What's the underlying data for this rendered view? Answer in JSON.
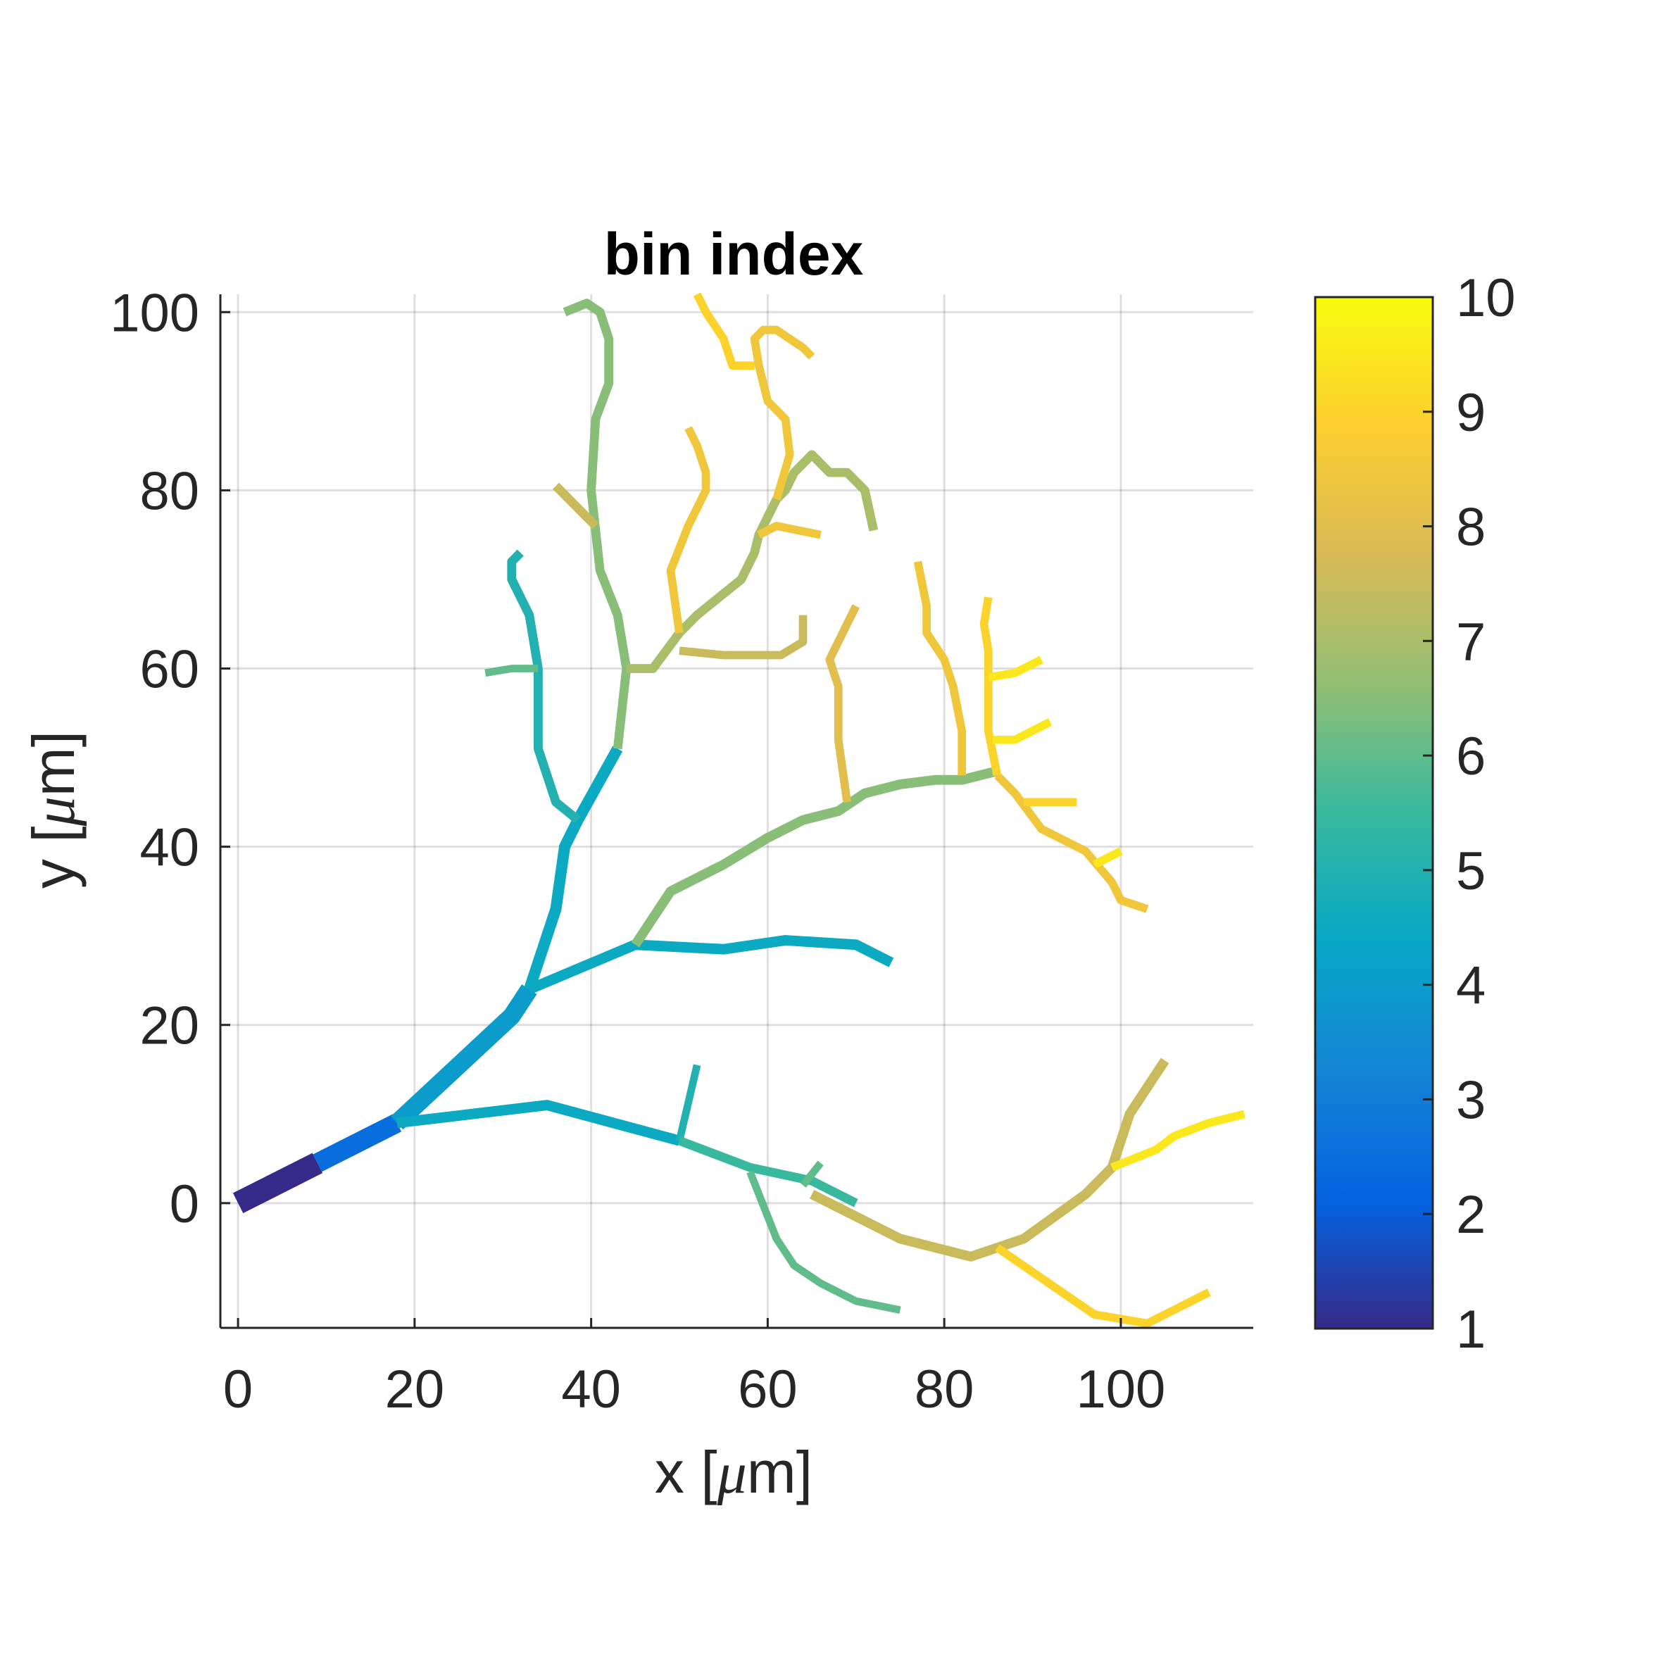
{
  "chart_data": {
    "type": "line",
    "title": "bin index",
    "xlabel": {
      "prefix": "x [",
      "mu": "μ",
      "suffix": "m]"
    },
    "ylabel": {
      "prefix": "y [",
      "mu": "μ",
      "suffix": "m]"
    },
    "xlim": [
      -2,
      115
    ],
    "ylim": [
      -14,
      102
    ],
    "xticks": [
      0,
      20,
      40,
      60,
      80,
      100
    ],
    "yticks": [
      0,
      20,
      40,
      60,
      80,
      100
    ],
    "grid": true,
    "colorbar": {
      "range": [
        1,
        10
      ],
      "ticks": [
        1,
        2,
        3,
        4,
        5,
        6,
        7,
        8,
        9,
        10
      ],
      "colormap": [
        "#352a87",
        "#0363e1",
        "#1485d4",
        "#06a7c6",
        "#38b99e",
        "#92bf73",
        "#d9ba56",
        "#fcce2e",
        "#f9fb0e"
      ]
    },
    "segments": [
      {
        "bin": 1,
        "width": 3.0,
        "points": [
          [
            0,
            0
          ],
          [
            9,
            4.5
          ]
        ]
      },
      {
        "bin": 2.5,
        "width": 2.6,
        "points": [
          [
            9,
            4.5
          ],
          [
            18,
            9
          ]
        ]
      },
      {
        "bin": 4,
        "width": 2.4,
        "points": [
          [
            18,
            9
          ],
          [
            31,
            21
          ],
          [
            33,
            24
          ]
        ]
      },
      {
        "bin": 4.5,
        "width": 1.5,
        "points": [
          [
            33,
            24
          ],
          [
            36,
            33
          ],
          [
            37,
            40
          ],
          [
            38.5,
            43
          ],
          [
            43,
            51
          ]
        ]
      },
      {
        "bin": 5,
        "width": 1.2,
        "points": [
          [
            38.5,
            43
          ],
          [
            36,
            45
          ],
          [
            34,
            51
          ],
          [
            34,
            60
          ],
          [
            33,
            66
          ],
          [
            31,
            70
          ],
          [
            31,
            72
          ],
          [
            32,
            73
          ]
        ]
      },
      {
        "bin": 6,
        "width": 1.0,
        "points": [
          [
            34,
            60
          ],
          [
            31,
            60
          ],
          [
            28,
            59.5
          ]
        ]
      },
      {
        "bin": 6.5,
        "width": 1.2,
        "points": [
          [
            43,
            51
          ],
          [
            44,
            60
          ],
          [
            43,
            66
          ],
          [
            41,
            71
          ],
          [
            40,
            80
          ],
          [
            40.5,
            88
          ],
          [
            42,
            92
          ],
          [
            42,
            97
          ],
          [
            41,
            100
          ],
          [
            39.5,
            101
          ],
          [
            37,
            100
          ]
        ]
      },
      {
        "bin": 7.5,
        "width": 1.2,
        "points": [
          [
            40.5,
            76
          ],
          [
            36,
            80.5
          ]
        ]
      },
      {
        "bin": 7,
        "width": 1.2,
        "points": [
          [
            44,
            60
          ],
          [
            47,
            60
          ],
          [
            50,
            64
          ],
          [
            52,
            66
          ],
          [
            57,
            70
          ],
          [
            58.5,
            73
          ],
          [
            59,
            75
          ],
          [
            61,
            79
          ],
          [
            62,
            80
          ],
          [
            63,
            82
          ],
          [
            65,
            84
          ],
          [
            67,
            82
          ],
          [
            69,
            82
          ],
          [
            71,
            80
          ],
          [
            72,
            75.5
          ]
        ]
      },
      {
        "bin": 8.5,
        "width": 1.1,
        "points": [
          [
            50,
            64
          ],
          [
            49,
            71
          ],
          [
            51,
            76
          ],
          [
            53,
            80
          ],
          [
            53,
            82
          ],
          [
            52,
            85
          ],
          [
            51,
            87
          ]
        ]
      },
      {
        "bin": 8.5,
        "width": 1.1,
        "points": [
          [
            59,
            75
          ],
          [
            61,
            76
          ],
          [
            66,
            75
          ]
        ]
      },
      {
        "bin": 8.5,
        "width": 1.1,
        "points": [
          [
            61,
            79
          ],
          [
            62.5,
            84
          ],
          [
            62,
            88
          ],
          [
            60,
            90
          ],
          [
            59,
            94
          ],
          [
            58.5,
            97
          ],
          [
            59.5,
            98
          ],
          [
            61,
            98
          ],
          [
            64,
            96
          ],
          [
            65,
            95
          ]
        ]
      },
      {
        "bin": 9,
        "width": 1.1,
        "points": [
          [
            58.5,
            94
          ],
          [
            56,
            94
          ],
          [
            55,
            97
          ],
          [
            53,
            100
          ],
          [
            52,
            102
          ]
        ]
      },
      {
        "bin": 7.5,
        "width": 1.1,
        "points": [
          [
            50,
            62
          ],
          [
            55,
            61.5
          ],
          [
            59,
            61.5
          ],
          [
            61.5,
            61.5
          ],
          [
            64,
            63
          ],
          [
            64,
            66
          ]
        ]
      },
      {
        "bin": 4.5,
        "width": 1.4,
        "points": [
          [
            33,
            24
          ],
          [
            45,
            29
          ],
          [
            55,
            28.5
          ],
          [
            62,
            29.5
          ],
          [
            70,
            29
          ],
          [
            74,
            27
          ]
        ]
      },
      {
        "bin": 6.5,
        "width": 1.3,
        "points": [
          [
            45,
            29
          ],
          [
            49,
            35
          ],
          [
            55,
            38
          ],
          [
            60,
            41
          ],
          [
            64,
            43
          ],
          [
            68,
            44
          ],
          [
            71,
            46
          ],
          [
            75,
            47
          ],
          [
            79,
            47.5
          ],
          [
            82,
            47.5
          ],
          [
            86,
            48.5
          ]
        ]
      },
      {
        "bin": 8,
        "width": 1.1,
        "points": [
          [
            69,
            45
          ],
          [
            68,
            52
          ],
          [
            68,
            55
          ],
          [
            68,
            58
          ],
          [
            67,
            61
          ],
          [
            69,
            65
          ],
          [
            70,
            67
          ]
        ]
      },
      {
        "bin": 8.5,
        "width": 1.1,
        "points": [
          [
            82,
            48
          ],
          [
            82,
            53
          ],
          [
            81,
            58
          ],
          [
            80,
            61
          ],
          [
            78,
            64
          ],
          [
            78,
            67
          ],
          [
            77,
            72
          ]
        ]
      },
      {
        "bin": 8.5,
        "width": 1.1,
        "points": [
          [
            86,
            48
          ],
          [
            88,
            46
          ],
          [
            91,
            42
          ],
          [
            96,
            39.5
          ],
          [
            99,
            36
          ],
          [
            100,
            34
          ],
          [
            103,
            33
          ]
        ]
      },
      {
        "bin": 9,
        "width": 1.1,
        "points": [
          [
            86,
            48
          ],
          [
            85,
            53
          ],
          [
            85,
            57
          ],
          [
            85,
            59
          ],
          [
            85,
            62
          ],
          [
            84.5,
            65
          ],
          [
            85,
            68
          ]
        ]
      },
      {
        "bin": 9.5,
        "width": 1.1,
        "points": [
          [
            85,
            59
          ],
          [
            88,
            59.5
          ],
          [
            91,
            61
          ]
        ]
      },
      {
        "bin": 9.5,
        "width": 1.1,
        "points": [
          [
            85.5,
            52
          ],
          [
            88,
            52
          ],
          [
            90,
            53
          ],
          [
            92,
            54
          ]
        ]
      },
      {
        "bin": 9,
        "width": 1.1,
        "points": [
          [
            89,
            45
          ],
          [
            95,
            45
          ]
        ]
      },
      {
        "bin": 9.5,
        "width": 1.1,
        "points": [
          [
            97,
            38
          ],
          [
            100,
            39.5
          ]
        ]
      },
      {
        "bin": 4.5,
        "width": 1.4,
        "points": [
          [
            18,
            9
          ],
          [
            35,
            11
          ],
          [
            50,
            7
          ]
        ]
      },
      {
        "bin": 5,
        "width": 1.0,
        "points": [
          [
            50,
            7
          ],
          [
            52,
            15.5
          ]
        ]
      },
      {
        "bin": 5.5,
        "width": 1.2,
        "points": [
          [
            50,
            7
          ],
          [
            58,
            4
          ],
          [
            65,
            2.5
          ],
          [
            70,
            0
          ]
        ]
      },
      {
        "bin": 6,
        "width": 1.0,
        "points": [
          [
            58,
            3.5
          ],
          [
            61,
            -4
          ],
          [
            63,
            -7
          ],
          [
            66,
            -9
          ],
          [
            70,
            -11
          ],
          [
            75,
            -12
          ]
        ]
      },
      {
        "bin": 6,
        "width": 1.0,
        "points": [
          [
            64,
            2
          ],
          [
            66,
            4.5
          ]
        ]
      },
      {
        "bin": 7.5,
        "width": 1.3,
        "points": [
          [
            65,
            1
          ],
          [
            75,
            -4
          ],
          [
            83,
            -6
          ],
          [
            86,
            -5
          ],
          [
            89,
            -4
          ],
          [
            96,
            1
          ],
          [
            99,
            4
          ],
          [
            101,
            10
          ],
          [
            103,
            13
          ],
          [
            105,
            16
          ]
        ]
      },
      {
        "bin": 9,
        "width": 1.1,
        "points": [
          [
            86,
            -5
          ],
          [
            97,
            -12.5
          ],
          [
            103,
            -13.5
          ],
          [
            106,
            -12
          ],
          [
            110,
            -10
          ]
        ]
      },
      {
        "bin": 9.5,
        "width": 1.1,
        "points": [
          [
            99,
            4
          ],
          [
            104,
            6
          ],
          [
            106,
            7.5
          ],
          [
            110,
            9
          ],
          [
            114,
            10
          ]
        ]
      }
    ]
  }
}
